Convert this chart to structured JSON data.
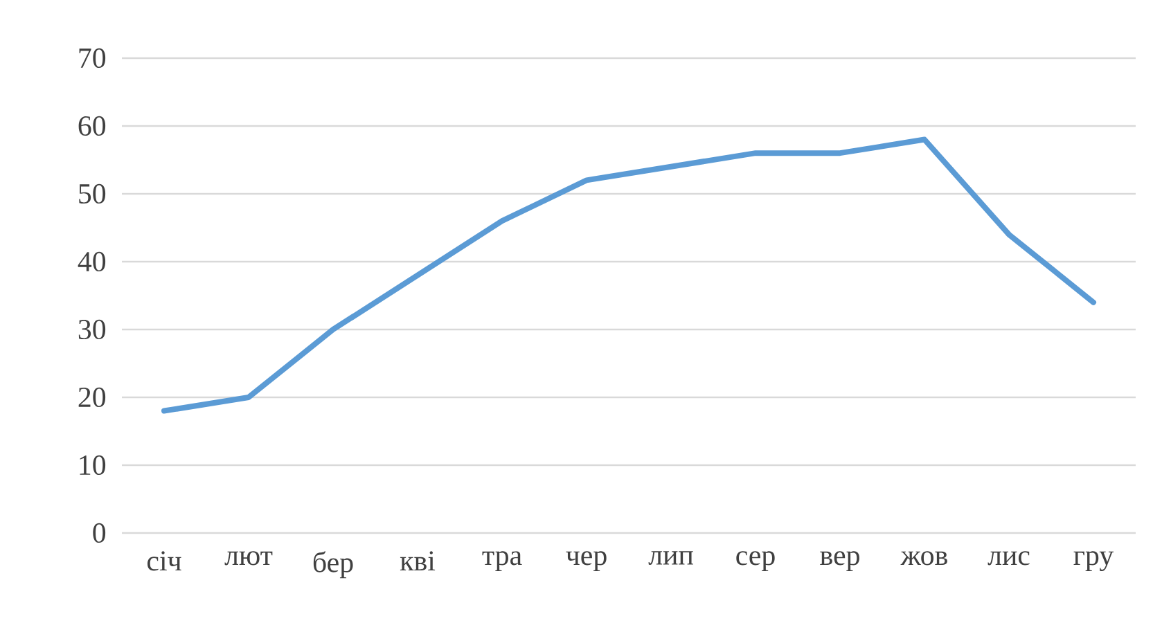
{
  "chart_data": {
    "type": "line",
    "categories": [
      "січ",
      "лют",
      "бер",
      "кві",
      "тра",
      "чер",
      "лип",
      "сер",
      "вер",
      "жов",
      "лис",
      "гру"
    ],
    "series": [
      {
        "color": "#5b9bd5",
        "values": [
          18,
          20,
          30,
          38,
          46,
          52,
          54,
          56,
          56,
          58,
          44,
          34
        ]
      }
    ],
    "ylim": [
      0,
      70
    ],
    "yticks": [
      0,
      10,
      20,
      30,
      40,
      50,
      60,
      70
    ],
    "grid": "y",
    "legend": false,
    "marker": "none",
    "line_style": "solid"
  }
}
